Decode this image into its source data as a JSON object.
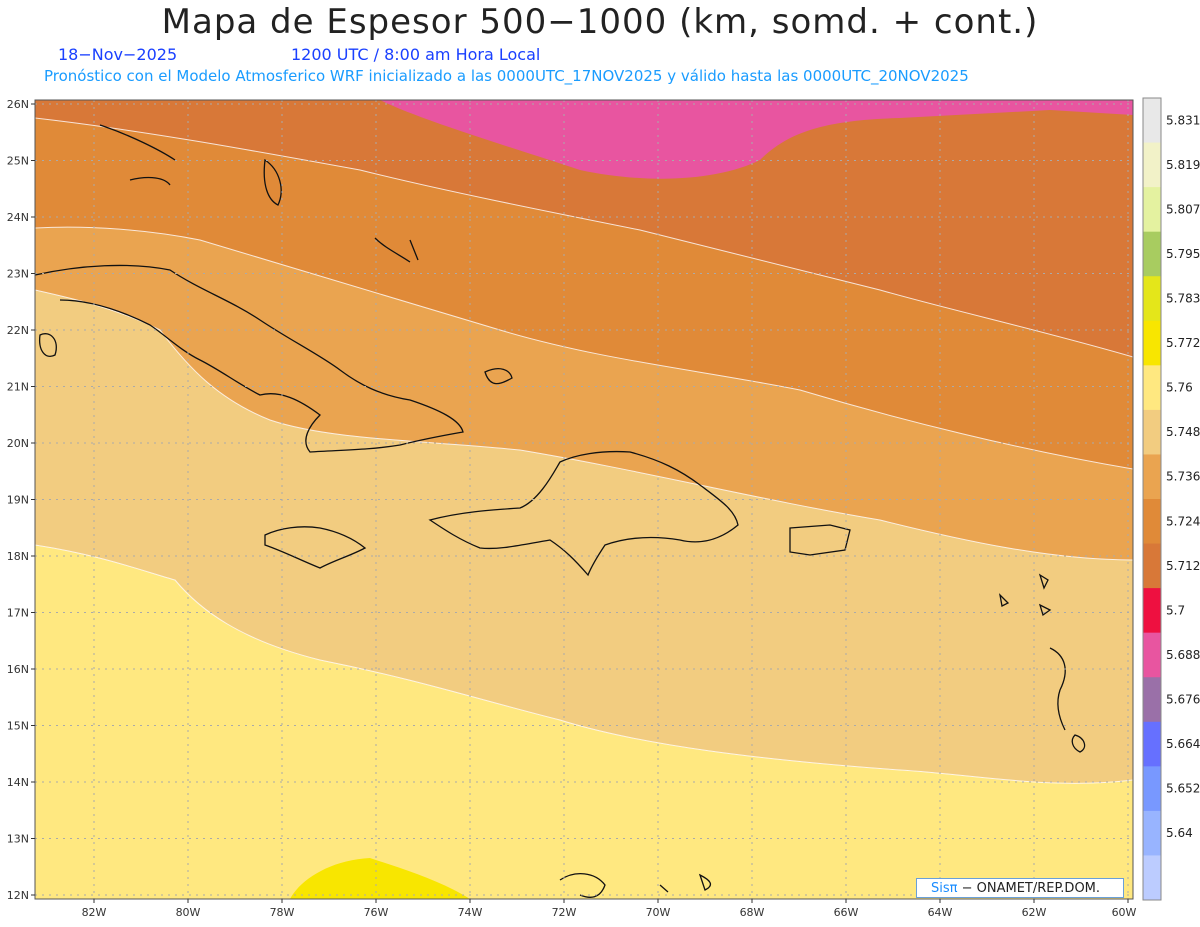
{
  "title": "Mapa de Espesor 500−1000 (km, somd. + cont.)",
  "date": "18−Nov−2025",
  "time": "1200 UTC / 8:00 am Hora Local",
  "subtitle": "Pronóstico con el Modelo Atmosferico WRF inicializado a las 0000UTC_17NOV2025 y válido hasta las  0000UTC_20NOV2025",
  "credit": {
    "logo": "Sisπ",
    "text": "− ONAMET/REP.DOM."
  },
  "lat_labels": [
    "26N",
    "25N",
    "24N",
    "23N",
    "22N",
    "21N",
    "20N",
    "19N",
    "18N",
    "17N",
    "16N",
    "15N",
    "14N",
    "13N",
    "12N"
  ],
  "lon_labels": [
    "82W",
    "80W",
    "78W",
    "76W",
    "74W",
    "72W",
    "70W",
    "68W",
    "66W",
    "64W",
    "62W",
    "60W"
  ],
  "colorbar": {
    "labels": [
      "5.831",
      "5.819",
      "5.807",
      "5.795",
      "5.783",
      "5.772",
      "5.76",
      "5.748",
      "5.736",
      "5.724",
      "5.712",
      "5.7",
      "5.688",
      "5.676",
      "5.664",
      "5.652",
      "5.64"
    ],
    "colors": [
      "#e8e8e8",
      "#f2f2c8",
      "#e4f2a0",
      "#a8cc60",
      "#e4e61a",
      "#f8e600",
      "#ffe880",
      "#f2cc80",
      "#eaa450",
      "#e08a38",
      "#d87838",
      "#ee1040",
      "#e855a0",
      "#9a70a8",
      "#6670ff",
      "#7898ff",
      "#98b4ff",
      "#bcccff"
    ]
  },
  "map_colors": {
    "band_5700": "#ee1040",
    "band_5688": "#e855a0",
    "band_5712": "#d87838",
    "band_5724": "#e08a38",
    "band_5736": "#eaa450",
    "band_5748": "#f2cc80",
    "band_5760": "#ffe880",
    "band_5772": "#f8e600"
  }
}
